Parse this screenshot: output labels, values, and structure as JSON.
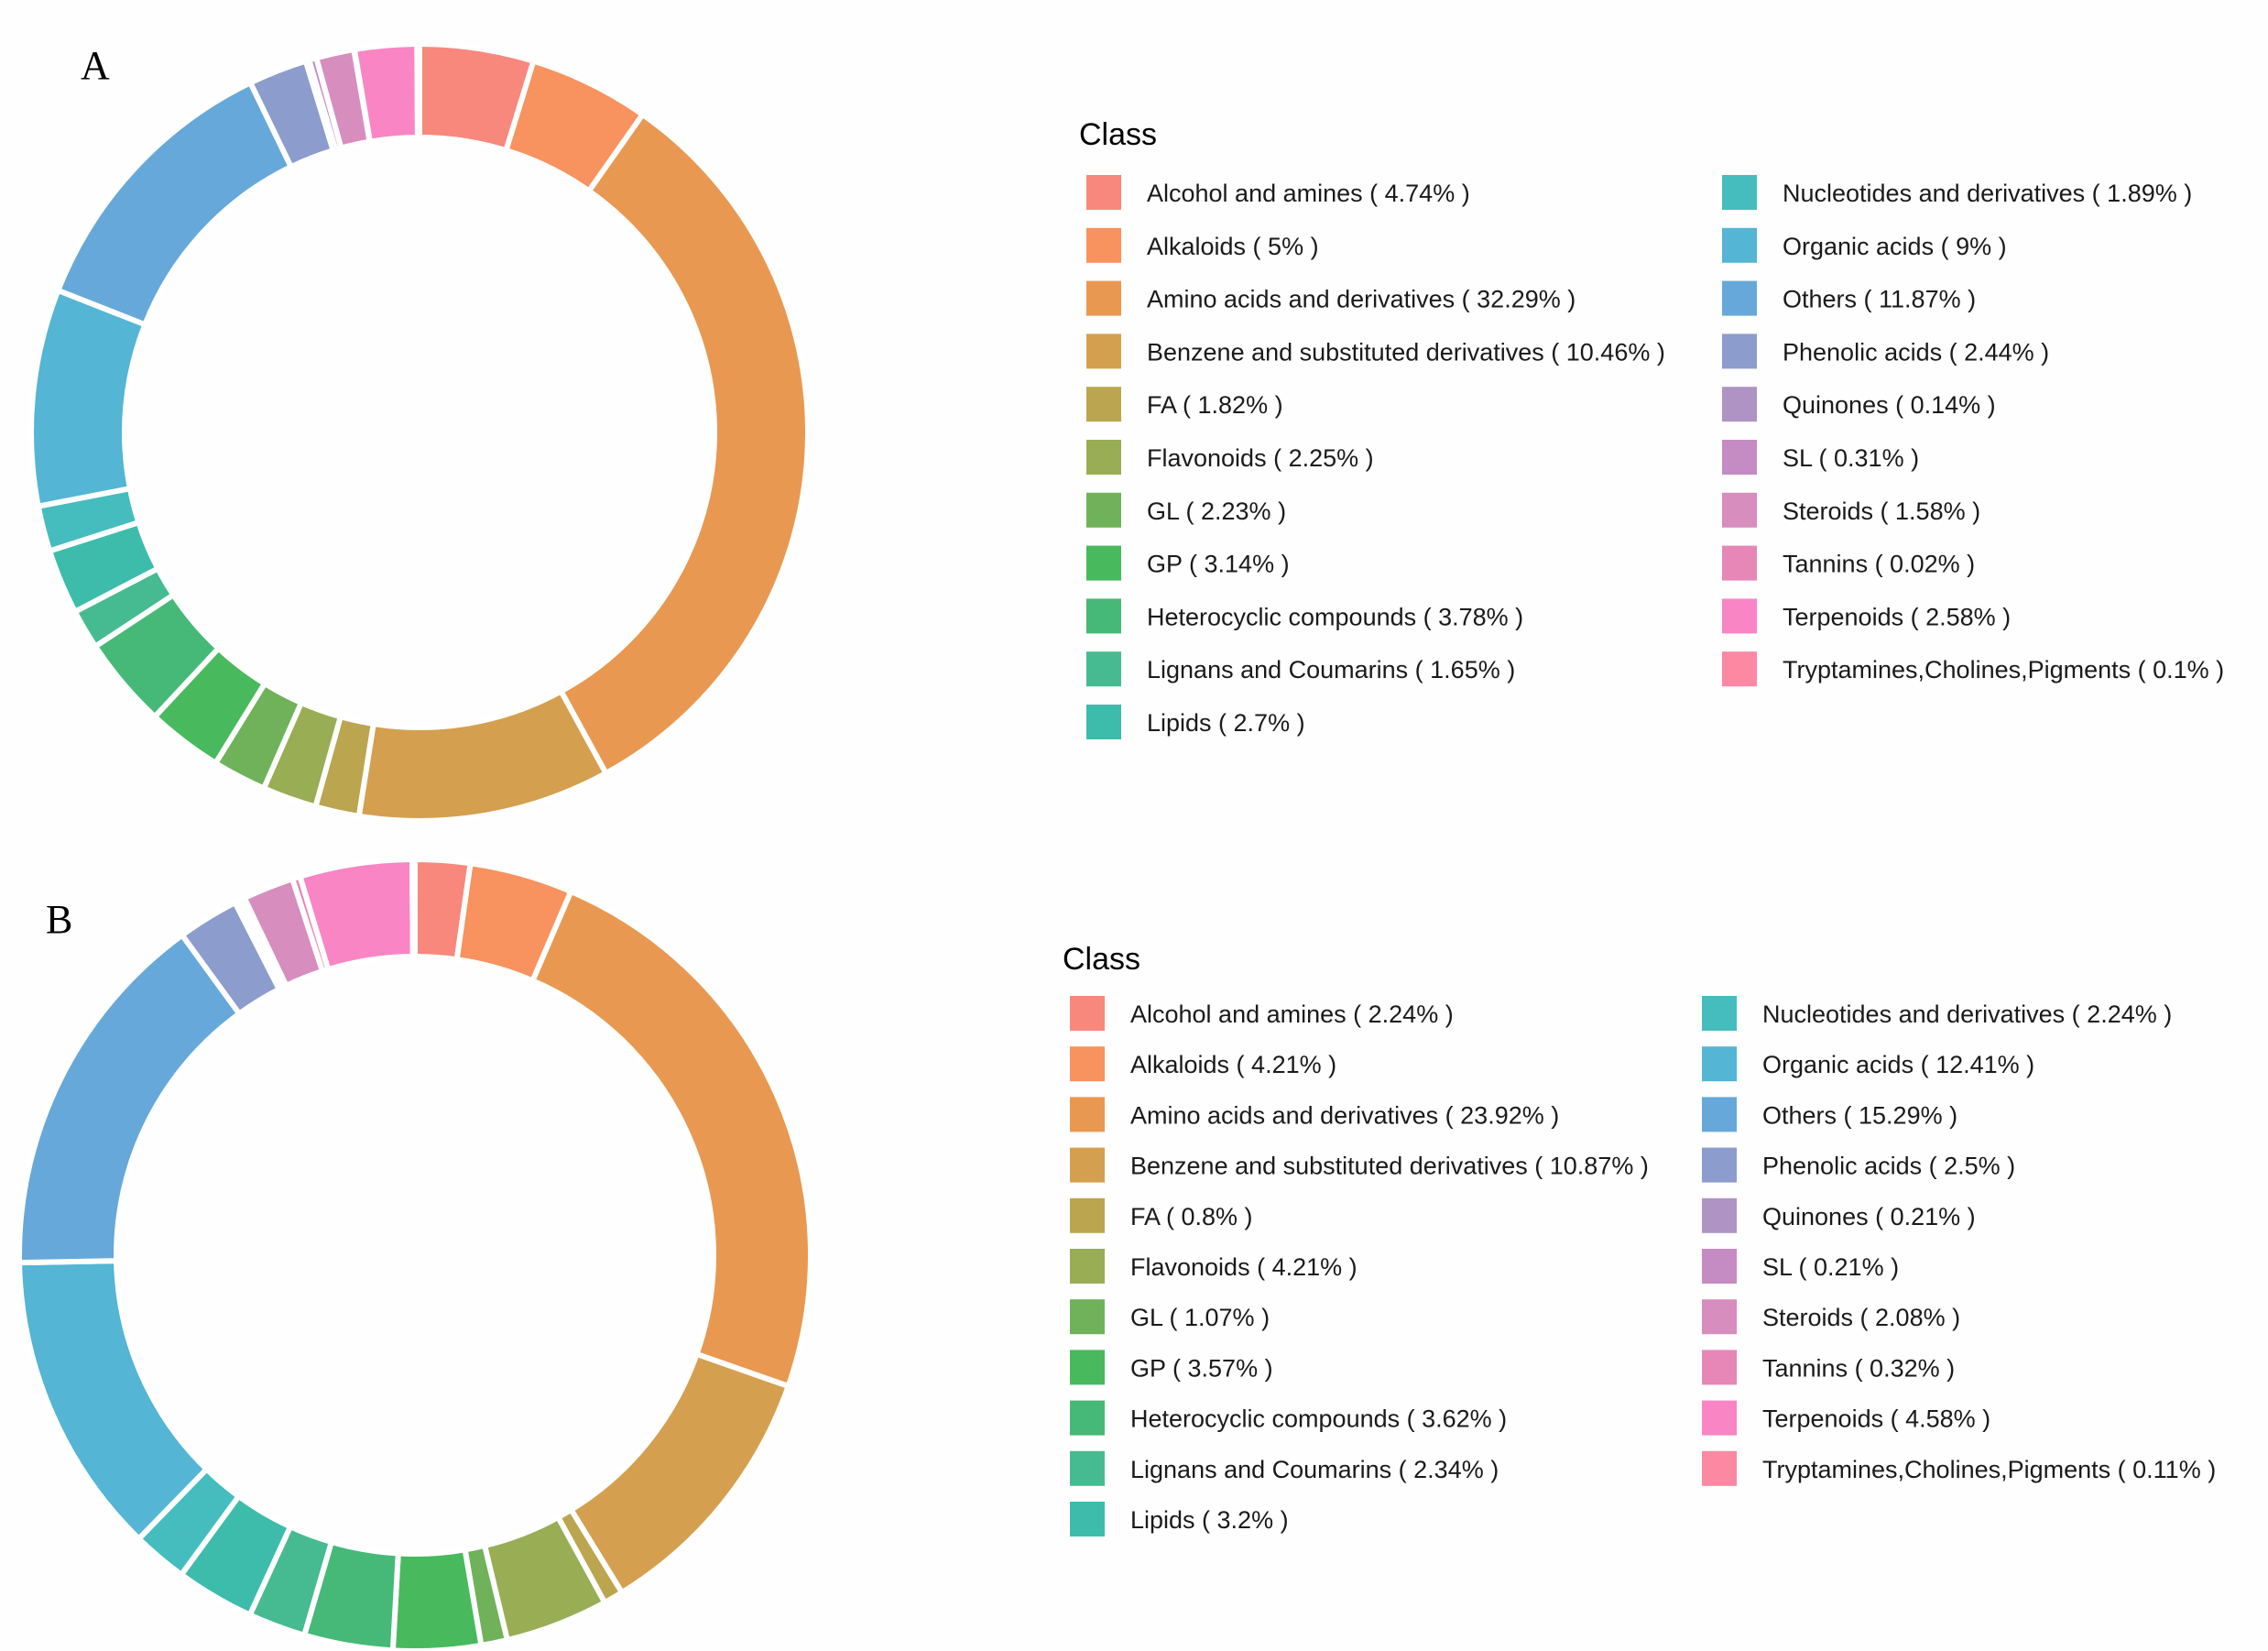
{
  "chart_data": [
    {
      "type": "pie",
      "variant": "donut",
      "panel_label": "A",
      "legend_title": "Class",
      "categories": [
        "Alcohol and amines",
        "Alkaloids",
        "Amino acids and derivatives",
        "Benzene and substituted derivatives",
        "FA",
        "Flavonoids",
        "GL",
        "GP",
        "Heterocyclic compounds",
        "Lignans and Coumarins",
        "Lipids",
        "Nucleotides and derivatives",
        "Organic acids",
        "Others",
        "Phenolic acids",
        "Quinones",
        "SL",
        "Steroids",
        "Tannins",
        "Terpenoids",
        "Tryptamines,Cholines,Pigments"
      ],
      "values": [
        4.74,
        5,
        32.29,
        10.46,
        1.82,
        2.25,
        2.23,
        3.14,
        3.78,
        1.65,
        2.7,
        1.89,
        9,
        11.87,
        2.44,
        0.14,
        0.31,
        1.58,
        0.02,
        2.58,
        0.1
      ],
      "labels": [
        "Alcohol and amines ( 4.74% )",
        "Alkaloids ( 5% )",
        "Amino acids and derivatives ( 32.29% )",
        "Benzene and substituted derivatives ( 10.46% )",
        "FA ( 1.82% )",
        "Flavonoids ( 2.25% )",
        "GL ( 2.23% )",
        "GP ( 3.14% )",
        "Heterocyclic compounds ( 3.78% )",
        "Lignans and Coumarins ( 1.65% )",
        "Lipids ( 2.7% )",
        "Nucleotides and derivatives ( 1.89% )",
        "Organic acids ( 9% )",
        "Others ( 11.87% )",
        "Phenolic acids ( 2.44% )",
        "Quinones ( 0.14% )",
        "SL ( 0.31% )",
        "Steroids ( 1.58% )",
        "Tannins ( 0.02% )",
        "Terpenoids ( 2.58% )",
        "Tryptamines,Cholines,Pigments ( 0.1% )"
      ]
    },
    {
      "type": "pie",
      "variant": "donut",
      "panel_label": "B",
      "legend_title": "Class",
      "categories": [
        "Alcohol and amines",
        "Alkaloids",
        "Amino acids and derivatives",
        "Benzene and substituted derivatives",
        "FA",
        "Flavonoids",
        "GL",
        "GP",
        "Heterocyclic compounds",
        "Lignans and Coumarins",
        "Lipids",
        "Nucleotides and derivatives",
        "Organic acids",
        "Others",
        "Phenolic acids",
        "Quinones",
        "SL",
        "Steroids",
        "Tannins",
        "Terpenoids",
        "Tryptamines,Cholines,Pigments"
      ],
      "values": [
        2.24,
        4.21,
        23.92,
        10.87,
        0.8,
        4.21,
        1.07,
        3.57,
        3.62,
        2.34,
        3.2,
        2.24,
        12.41,
        15.29,
        2.5,
        0.21,
        0.21,
        2.08,
        0.32,
        4.58,
        0.11
      ],
      "labels": [
        "Alcohol and amines ( 2.24% )",
        "Alkaloids ( 4.21% )",
        "Amino acids and derivatives ( 23.92% )",
        "Benzene and substituted derivatives ( 10.87% )",
        "FA ( 0.8% )",
        "Flavonoids ( 4.21% )",
        "GL ( 1.07% )",
        "GP ( 3.57% )",
        "Heterocyclic compounds ( 3.62% )",
        "Lignans and Coumarins ( 2.34% )",
        "Lipids ( 3.2% )",
        "Nucleotides and derivatives ( 2.24% )",
        "Organic acids ( 12.41% )",
        "Others ( 15.29% )",
        "Phenolic acids ( 2.5% )",
        "Quinones ( 0.21% )",
        "SL ( 0.21% )",
        "Steroids ( 2.08% )",
        "Tannins ( 0.32% )",
        "Terpenoids ( 4.58% )",
        "Tryptamines,Cholines,Pigments ( 0.11% )"
      ]
    }
  ],
  "colors": [
    "#F8877C",
    "#F8925F",
    "#E99851",
    "#D4A04F",
    "#BBA54F",
    "#99AD55",
    "#6FB25A",
    "#48B95D",
    "#46B978",
    "#46BB92",
    "#3EBCAB",
    "#45BDBE",
    "#54B5D4",
    "#66A8D9",
    "#8C9CCC",
    "#AE93C4",
    "#C48CC2",
    "#D78DBE",
    "#E687B8",
    "#F985C4",
    "#FC88A2"
  ]
}
